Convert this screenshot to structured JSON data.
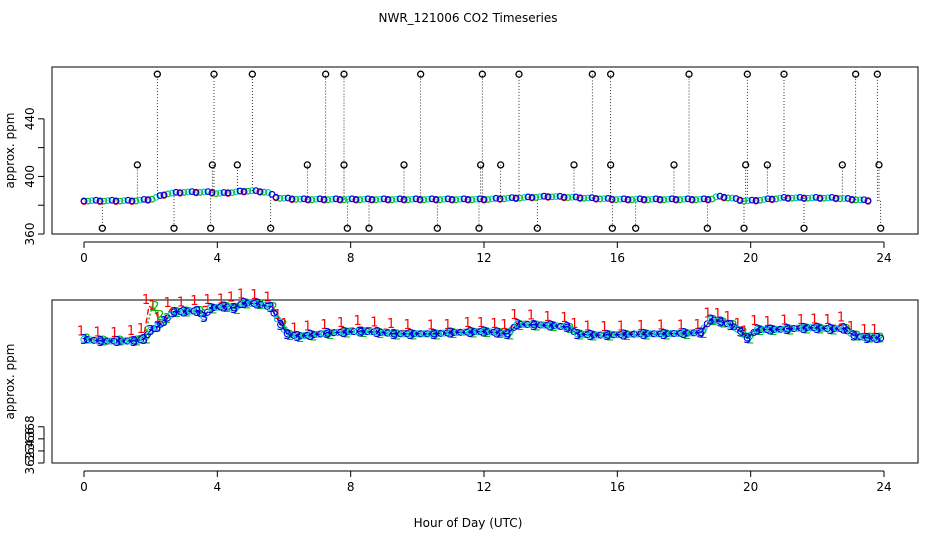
{
  "title": "NWR_121006  CO2 Timeseries",
  "xlabel": "Hour of Day (UTC)",
  "colors": {
    "black": "#000000",
    "red": "#ff0000",
    "green": "#00bb00",
    "blue": "#0000dd",
    "cyan": "#00cccc"
  },
  "chart_data": [
    {
      "type": "scatter",
      "panel": "top",
      "ylabel": "approx. ppm",
      "xlim": [
        0,
        24
      ],
      "ylim": [
        360,
        476
      ],
      "xticks": [
        0,
        4,
        8,
        12,
        16,
        20,
        24
      ],
      "yticks": [
        360,
        380,
        400,
        420,
        440
      ],
      "ytick_labels": [
        "360",
        "",
        "400",
        "",
        "440"
      ],
      "baseline": [
        [
          0,
          383
        ],
        [
          1.5,
          383
        ],
        [
          2,
          384
        ],
        [
          2.5,
          388
        ],
        [
          3,
          389
        ],
        [
          3.8,
          389
        ],
        [
          4,
          388
        ],
        [
          4.5,
          389
        ],
        [
          5,
          390
        ],
        [
          5.5,
          389
        ],
        [
          5.8,
          385
        ],
        [
          6.5,
          384
        ],
        [
          8,
          384
        ],
        [
          9,
          384
        ],
        [
          12,
          384
        ],
        [
          13,
          385
        ],
        [
          14,
          386
        ],
        [
          15,
          385
        ],
        [
          16,
          384
        ],
        [
          18,
          384
        ],
        [
          18.8,
          384
        ],
        [
          19,
          386
        ],
        [
          19.4,
          385
        ],
        [
          19.8,
          383
        ],
        [
          20,
          383
        ],
        [
          21,
          385
        ],
        [
          22.5,
          385
        ],
        [
          23.6,
          383
        ]
      ],
      "spikes_high": [
        2.2,
        3.9,
        5.05,
        7.25,
        7.8,
        10.1,
        11.95,
        13.05,
        15.25,
        15.8,
        18.15,
        19.9,
        21,
        23.15,
        23.8
      ],
      "spikes_mid": [
        1.6,
        3.85,
        4.6,
        6.7,
        7.8,
        9.6,
        11.9,
        12.5,
        14.7,
        15.8,
        17.7,
        19.85,
        20.5,
        22.75,
        23.85
      ],
      "spikes_low": [
        0.55,
        2.7,
        3.8,
        5.6,
        7.9,
        8.55,
        10.6,
        11.85,
        13.6,
        15.85,
        16.55,
        18.7,
        19.8,
        21.6,
        23.9
      ]
    },
    {
      "type": "line",
      "panel": "bottom",
      "ylabel": "approx. ppm",
      "xlim": [
        0,
        24
      ],
      "ylim": [
        362,
        389
      ],
      "xticks": [
        0,
        4,
        8,
        12,
        16,
        20,
        24
      ],
      "yticks": [
        362,
        364,
        366,
        368
      ],
      "ytick_labels": [
        "362",
        "364",
        "366",
        "368"
      ],
      "series": [
        {
          "name": "1",
          "color": "red",
          "points": [
            [
              0,
              382.8
            ],
            [
              0.5,
              382.6
            ],
            [
              1,
              382.5
            ],
            [
              1.5,
              382.9
            ],
            [
              1.8,
              383.2
            ],
            [
              1.95,
              388
            ],
            [
              2.15,
              387
            ],
            [
              2.3,
              385
            ],
            [
              2.6,
              387.5
            ],
            [
              3,
              387.6
            ],
            [
              3.4,
              387.8
            ],
            [
              3.8,
              388
            ],
            [
              4.2,
              388.1
            ],
            [
              4.5,
              388.4
            ],
            [
              4.8,
              388.9
            ],
            [
              5.2,
              388.8
            ],
            [
              5.6,
              388.4
            ],
            [
              5.9,
              385.5
            ],
            [
              6.1,
              384
            ],
            [
              6.4,
              383.3
            ],
            [
              6.8,
              383.6
            ],
            [
              7.3,
              383.9
            ],
            [
              7.8,
              384.2
            ],
            [
              8.3,
              384.5
            ],
            [
              8.8,
              384.3
            ],
            [
              9.3,
              384
            ],
            [
              9.8,
              383.9
            ],
            [
              10.5,
              383.8
            ],
            [
              11,
              383.9
            ],
            [
              11.6,
              384.2
            ],
            [
              12,
              384.2
            ],
            [
              12.4,
              384
            ],
            [
              12.7,
              383.9
            ],
            [
              13,
              385.5
            ],
            [
              13.5,
              385.4
            ],
            [
              14,
              385.2
            ],
            [
              14.5,
              385
            ],
            [
              14.8,
              384
            ],
            [
              15.2,
              383.6
            ],
            [
              15.7,
              383.5
            ],
            [
              16.2,
              383.6
            ],
            [
              16.8,
              383.7
            ],
            [
              17.4,
              383.8
            ],
            [
              18,
              383.8
            ],
            [
              18.5,
              383.9
            ],
            [
              18.8,
              385.8
            ],
            [
              19.1,
              385.7
            ],
            [
              19.4,
              385.2
            ],
            [
              19.7,
              384
            ],
            [
              19.9,
              382.8
            ],
            [
              20.2,
              384.5
            ],
            [
              20.6,
              384.4
            ],
            [
              21.1,
              384.6
            ],
            [
              21.6,
              384.7
            ],
            [
              22,
              384.8
            ],
            [
              22.4,
              384.7
            ],
            [
              22.8,
              385.1
            ],
            [
              23.1,
              383.5
            ],
            [
              23.5,
              383
            ],
            [
              23.8,
              383
            ]
          ]
        },
        {
          "name": "2",
          "color": "green",
          "points": [
            [
              0,
              382.6
            ],
            [
              0.5,
              382.3
            ],
            [
              1,
              382.3
            ],
            [
              1.5,
              382.3
            ],
            [
              1.8,
              382.6
            ],
            [
              2.05,
              388
            ],
            [
              2.2,
              386.5
            ],
            [
              2.4,
              386
            ],
            [
              2.7,
              387
            ],
            [
              3,
              387.1
            ],
            [
              3.4,
              387.2
            ],
            [
              3.8,
              387.6
            ],
            [
              4.2,
              387.8
            ],
            [
              4.5,
              387.5
            ],
            [
              4.8,
              388.4
            ],
            [
              5.2,
              388.3
            ],
            [
              5.6,
              387.8
            ],
            [
              5.9,
              385
            ],
            [
              6.1,
              383.2
            ],
            [
              6.4,
              382.9
            ],
            [
              6.8,
              383.1
            ],
            [
              7.3,
              383.4
            ],
            [
              7.8,
              383.6
            ],
            [
              8.3,
              383.7
            ],
            [
              8.8,
              383.5
            ],
            [
              9.3,
              383.3
            ],
            [
              9.8,
              383.3
            ],
            [
              10.5,
              383.3
            ],
            [
              11,
              383.5
            ],
            [
              11.6,
              383.6
            ],
            [
              12,
              383.7
            ],
            [
              12.4,
              383.5
            ],
            [
              12.7,
              383.3
            ],
            [
              13,
              384.9
            ],
            [
              13.5,
              384.8
            ],
            [
              14,
              384.7
            ],
            [
              14.5,
              384.4
            ],
            [
              14.8,
              383.3
            ],
            [
              15.2,
              383.1
            ],
            [
              15.7,
              383.1
            ],
            [
              16.2,
              383.2
            ],
            [
              16.8,
              383.3
            ],
            [
              17.4,
              383.3
            ],
            [
              18,
              383.4
            ],
            [
              18.5,
              383.5
            ],
            [
              18.8,
              385.7
            ],
            [
              19.1,
              385.3
            ],
            [
              19.4,
              384.9
            ],
            [
              19.7,
              383.7
            ],
            [
              19.9,
              382.6
            ],
            [
              20.2,
              384
            ],
            [
              20.6,
              384
            ],
            [
              21.1,
              384.1
            ],
            [
              21.6,
              384.3
            ],
            [
              22,
              384.3
            ],
            [
              22.4,
              384.1
            ],
            [
              22.8,
              384.2
            ],
            [
              23.1,
              383.1
            ],
            [
              23.5,
              382.8
            ],
            [
              23.8,
              382.8
            ]
          ]
        },
        {
          "name": "3",
          "color": "blue",
          "points": [
            [
              0,
              382.5
            ],
            [
              0.5,
              382.2
            ],
            [
              1,
              382.2
            ],
            [
              1.5,
              382.2
            ],
            [
              1.8,
              382.5
            ],
            [
              2,
              384
            ],
            [
              2.2,
              384.5
            ],
            [
              2.4,
              385.5
            ],
            [
              2.7,
              387
            ],
            [
              3,
              387.1
            ],
            [
              3.4,
              387.2
            ],
            [
              3.6,
              386.2
            ],
            [
              3.8,
              387.7
            ],
            [
              4.2,
              387.9
            ],
            [
              4.5,
              387.7
            ],
            [
              4.8,
              388.5
            ],
            [
              5.2,
              388.4
            ],
            [
              5.6,
              387.8
            ],
            [
              5.9,
              384.9
            ],
            [
              6.1,
              383.4
            ],
            [
              6.4,
              383
            ],
            [
              6.8,
              383.2
            ],
            [
              7.3,
              383.5
            ],
            [
              7.8,
              383.7
            ],
            [
              8.3,
              383.8
            ],
            [
              8.8,
              383.7
            ],
            [
              9.3,
              383.4
            ],
            [
              9.8,
              383.4
            ],
            [
              10.5,
              383.4
            ],
            [
              11,
              383.6
            ],
            [
              11.6,
              383.7
            ],
            [
              12,
              383.8
            ],
            [
              12.4,
              383.6
            ],
            [
              12.7,
              383.4
            ],
            [
              13,
              385
            ],
            [
              13.5,
              384.9
            ],
            [
              14,
              384.8
            ],
            [
              14.5,
              384.5
            ],
            [
              14.8,
              383.4
            ],
            [
              15.2,
              383.2
            ],
            [
              15.7,
              383.2
            ],
            [
              16.2,
              383.3
            ],
            [
              16.8,
              383.4
            ],
            [
              17.4,
              383.4
            ],
            [
              18,
              383.5
            ],
            [
              18.5,
              383.6
            ],
            [
              18.8,
              385.8
            ],
            [
              19.1,
              385.4
            ],
            [
              19.4,
              384.9
            ],
            [
              19.7,
              383.8
            ],
            [
              19.9,
              382.7
            ],
            [
              20.2,
              384.1
            ],
            [
              20.6,
              384.1
            ],
            [
              21.1,
              384.2
            ],
            [
              21.6,
              384.4
            ],
            [
              22,
              384.4
            ],
            [
              22.4,
              384.2
            ],
            [
              22.8,
              384.3
            ],
            [
              23.1,
              383.1
            ],
            [
              23.5,
              382.7
            ],
            [
              23.8,
              382.7
            ]
          ]
        }
      ]
    }
  ]
}
